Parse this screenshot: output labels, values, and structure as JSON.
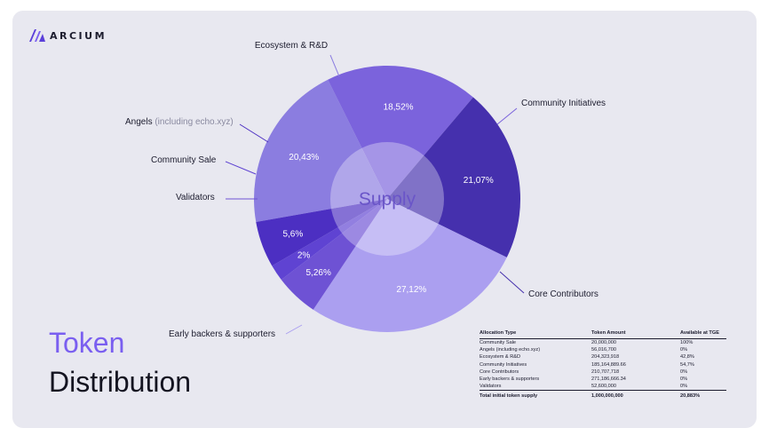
{
  "brand": {
    "name": "ARCIUM",
    "color": "#5b3fd9"
  },
  "title": {
    "line1": "Token",
    "line2": "Distribution"
  },
  "chart_data": {
    "type": "pie",
    "center_label": "Supply",
    "slices": [
      {
        "label": "Ecosystem & R&D",
        "label_suffix": "",
        "value": 20.43,
        "value_label": "20,43%",
        "color": "#8b7de0"
      },
      {
        "label": "Community Initiatives",
        "label_suffix": "",
        "value": 18.52,
        "value_label": "18,52%",
        "color": "#7b63dc"
      },
      {
        "label": "Core Contributors",
        "label_suffix": "",
        "value": 21.07,
        "value_label": "21,07%",
        "color": "#4530ad"
      },
      {
        "label": "Early backers & supporters",
        "label_suffix": "",
        "value": 27.12,
        "value_label": "27,12%",
        "color": "#ab9ff0"
      },
      {
        "label": "Validators",
        "label_suffix": "",
        "value": 5.26,
        "value_label": "5,26%",
        "color": "#6e52d4"
      },
      {
        "label": "Community Sale",
        "label_suffix": "",
        "value": 2.0,
        "value_label": "2%",
        "color": "#5f43d2"
      },
      {
        "label": "Angels",
        "label_suffix": "(including echo.xyz)",
        "value": 5.6,
        "value_label": "5,6%",
        "color": "#4c2fc2"
      }
    ]
  },
  "table": {
    "headers": [
      "Allocation Type",
      "Token Amount",
      "Available at TGE"
    ],
    "rows": [
      [
        "Community Sale",
        "20,000,000",
        "100%"
      ],
      [
        "Angels (including echo.xyz)",
        "56,016,700",
        "0%"
      ],
      [
        "Ecosystem & R&D",
        "204,323,918",
        "42,8%"
      ],
      [
        "Community Initiatives",
        "185,164,889.66",
        "54,7%"
      ],
      [
        "Core Contributors",
        "210,707,718",
        "0%"
      ],
      [
        "Early backers & supporters",
        "271,186,666.34",
        "0%"
      ],
      [
        "Validators",
        "52,600,000",
        "0%"
      ]
    ],
    "total": [
      "Total initial token supply",
      "1,000,000,000",
      "20,883%"
    ]
  }
}
